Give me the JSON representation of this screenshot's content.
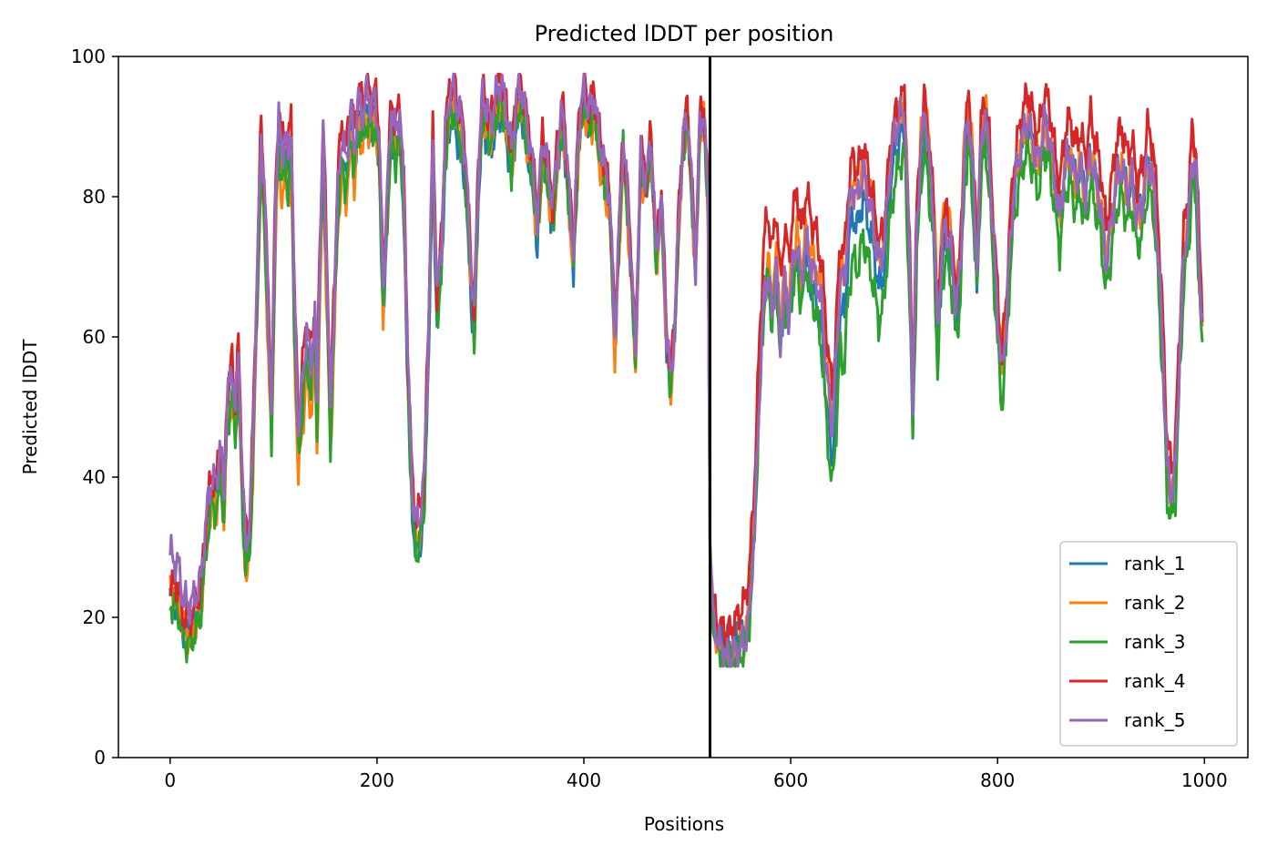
{
  "chart_data": {
    "type": "line",
    "title": "Predicted lDDT per position",
    "xlabel": "Positions",
    "ylabel": "Predicted lDDT",
    "xlim": [
      -50,
      1042
    ],
    "ylim": [
      0,
      100
    ],
    "xticks": [
      0,
      200,
      400,
      600,
      800,
      1000
    ],
    "yticks": [
      0,
      20,
      40,
      60,
      80,
      100
    ],
    "vline_x": 522,
    "legend_loc": "lower right",
    "series": [
      {
        "name": "rank_1",
        "color": "#1f77b4",
        "offset": [
          [
            0,
            -2.0
          ],
          [
            60,
            0
          ],
          [
            290,
            -4
          ],
          [
            520,
            0
          ],
          [
            540,
            1
          ],
          [
            560,
            -1
          ],
          [
            640,
            -6
          ],
          [
            700,
            -2
          ],
          [
            1000,
            -1
          ]
        ]
      },
      {
        "name": "rank_2",
        "color": "#ff7f0e",
        "offset": [
          [
            0,
            -1.0
          ],
          [
            140,
            -6
          ],
          [
            230,
            -1
          ],
          [
            420,
            -3
          ],
          [
            520,
            -1
          ],
          [
            600,
            -1
          ],
          [
            750,
            3
          ],
          [
            850,
            -2
          ],
          [
            1000,
            -1
          ]
        ]
      },
      {
        "name": "rank_3",
        "color": "#2ca02c",
        "offset": [
          [
            0,
            -3.0
          ],
          [
            80,
            -3
          ],
          [
            240,
            -3
          ],
          [
            500,
            -1
          ],
          [
            520,
            -1
          ],
          [
            620,
            -6
          ],
          [
            650,
            -12
          ],
          [
            720,
            -4
          ],
          [
            900,
            -6
          ],
          [
            1000,
            -4
          ]
        ]
      },
      {
        "name": "rank_4",
        "color": "#d62728",
        "offset": [
          [
            0,
            0
          ],
          [
            60,
            2
          ],
          [
            140,
            3
          ],
          [
            300,
            1
          ],
          [
            520,
            1
          ],
          [
            580,
            6
          ],
          [
            640,
            4
          ],
          [
            760,
            2
          ],
          [
            930,
            4
          ],
          [
            1000,
            3
          ]
        ]
      },
      {
        "name": "rank_5",
        "color": "#9467bd",
        "offset": [
          [
            0,
            4.0
          ],
          [
            40,
            1
          ],
          [
            140,
            1
          ],
          [
            520,
            0
          ],
          [
            580,
            -3
          ],
          [
            620,
            -2
          ],
          [
            700,
            1
          ],
          [
            900,
            -2
          ],
          [
            1000,
            0
          ]
        ]
      }
    ],
    "base_profile": [
      [
        0,
        25
      ],
      [
        8,
        24
      ],
      [
        12,
        20
      ],
      [
        18,
        19
      ],
      [
        25,
        21
      ],
      [
        30,
        24
      ],
      [
        35,
        33
      ],
      [
        40,
        39
      ],
      [
        45,
        38
      ],
      [
        48,
        44
      ],
      [
        52,
        37
      ],
      [
        55,
        50
      ],
      [
        60,
        55
      ],
      [
        63,
        48
      ],
      [
        66,
        57
      ],
      [
        70,
        38
      ],
      [
        73,
        30
      ],
      [
        77,
        32
      ],
      [
        80,
        45
      ],
      [
        85,
        72
      ],
      [
        88,
        89
      ],
      [
        92,
        76
      ],
      [
        95,
        62
      ],
      [
        98,
        48
      ],
      [
        102,
        80
      ],
      [
        105,
        90
      ],
      [
        108,
        85
      ],
      [
        111,
        88
      ],
      [
        114,
        84
      ],
      [
        117,
        90
      ],
      [
        120,
        65
      ],
      [
        124,
        45
      ],
      [
        128,
        53
      ],
      [
        132,
        60
      ],
      [
        136,
        55
      ],
      [
        140,
        62
      ],
      [
        142,
        50
      ],
      [
        145,
        72
      ],
      [
        148,
        88
      ],
      [
        151,
        72
      ],
      [
        155,
        48
      ],
      [
        158,
        62
      ],
      [
        162,
        80
      ],
      [
        166,
        88
      ],
      [
        170,
        84
      ],
      [
        175,
        92
      ],
      [
        178,
        86
      ],
      [
        182,
        93
      ],
      [
        186,
        91
      ],
      [
        190,
        94
      ],
      [
        194,
        92
      ],
      [
        198,
        93
      ],
      [
        202,
        88
      ],
      [
        206,
        66
      ],
      [
        210,
        80
      ],
      [
        214,
        92
      ],
      [
        218,
        88
      ],
      [
        222,
        92
      ],
      [
        226,
        80
      ],
      [
        230,
        55
      ],
      [
        234,
        38
      ],
      [
        238,
        32
      ],
      [
        242,
        34
      ],
      [
        246,
        40
      ],
      [
        250,
        62
      ],
      [
        254,
        88
      ],
      [
        258,
        65
      ],
      [
        262,
        72
      ],
      [
        266,
        88
      ],
      [
        270,
        94
      ],
      [
        274,
        95
      ],
      [
        278,
        92
      ],
      [
        282,
        90
      ],
      [
        286,
        84
      ],
      [
        290,
        72
      ],
      [
        294,
        62
      ],
      [
        298,
        84
      ],
      [
        302,
        94
      ],
      [
        306,
        92
      ],
      [
        310,
        90
      ],
      [
        315,
        94
      ],
      [
        320,
        96
      ],
      [
        325,
        92
      ],
      [
        330,
        86
      ],
      [
        335,
        94
      ],
      [
        340,
        95
      ],
      [
        345,
        90
      ],
      [
        350,
        85
      ],
      [
        355,
        76
      ],
      [
        360,
        88
      ],
      [
        365,
        84
      ],
      [
        370,
        78
      ],
      [
        375,
        88
      ],
      [
        380,
        92
      ],
      [
        385,
        82
      ],
      [
        390,
        72
      ],
      [
        395,
        90
      ],
      [
        400,
        95
      ],
      [
        405,
        92
      ],
      [
        410,
        94
      ],
      [
        415,
        88
      ],
      [
        420,
        84
      ],
      [
        425,
        80
      ],
      [
        430,
        60
      ],
      [
        434,
        75
      ],
      [
        438,
        88
      ],
      [
        442,
        80
      ],
      [
        446,
        70
      ],
      [
        450,
        58
      ],
      [
        455,
        86
      ],
      [
        460,
        82
      ],
      [
        465,
        88
      ],
      [
        470,
        72
      ],
      [
        475,
        80
      ],
      [
        480,
        60
      ],
      [
        484,
        54
      ],
      [
        488,
        62
      ],
      [
        492,
        78
      ],
      [
        496,
        88
      ],
      [
        500,
        92
      ],
      [
        504,
        82
      ],
      [
        508,
        70
      ],
      [
        512,
        90
      ],
      [
        516,
        92
      ],
      [
        520,
        80
      ],
      [
        522,
        30
      ],
      [
        525,
        20
      ],
      [
        530,
        17
      ],
      [
        535,
        16
      ],
      [
        540,
        15
      ],
      [
        545,
        16
      ],
      [
        550,
        17
      ],
      [
        555,
        18
      ],
      [
        560,
        22
      ],
      [
        565,
        35
      ],
      [
        570,
        55
      ],
      [
        574,
        68
      ],
      [
        578,
        72
      ],
      [
        582,
        66
      ],
      [
        586,
        73
      ],
      [
        590,
        62
      ],
      [
        594,
        70
      ],
      [
        598,
        66
      ],
      [
        602,
        72
      ],
      [
        606,
        76
      ],
      [
        610,
        70
      ],
      [
        615,
        76
      ],
      [
        620,
        72
      ],
      [
        625,
        70
      ],
      [
        630,
        66
      ],
      [
        635,
        56
      ],
      [
        640,
        48
      ],
      [
        644,
        58
      ],
      [
        648,
        70
      ],
      [
        652,
        68
      ],
      [
        656,
        78
      ],
      [
        660,
        82
      ],
      [
        665,
        80
      ],
      [
        670,
        84
      ],
      [
        675,
        80
      ],
      [
        680,
        76
      ],
      [
        685,
        70
      ],
      [
        690,
        72
      ],
      [
        695,
        82
      ],
      [
        700,
        88
      ],
      [
        705,
        90
      ],
      [
        710,
        92
      ],
      [
        715,
        70
      ],
      [
        718,
        50
      ],
      [
        722,
        76
      ],
      [
        726,
        86
      ],
      [
        730,
        92
      ],
      [
        734,
        84
      ],
      [
        738,
        78
      ],
      [
        742,
        60
      ],
      [
        746,
        72
      ],
      [
        750,
        76
      ],
      [
        755,
        72
      ],
      [
        760,
        64
      ],
      [
        764,
        70
      ],
      [
        768,
        86
      ],
      [
        772,
        92
      ],
      [
        776,
        84
      ],
      [
        780,
        70
      ],
      [
        784,
        88
      ],
      [
        788,
        92
      ],
      [
        792,
        86
      ],
      [
        796,
        74
      ],
      [
        800,
        64
      ],
      [
        804,
        55
      ],
      [
        808,
        62
      ],
      [
        812,
        74
      ],
      [
        816,
        82
      ],
      [
        820,
        86
      ],
      [
        825,
        90
      ],
      [
        830,
        92
      ],
      [
        835,
        88
      ],
      [
        840,
        86
      ],
      [
        845,
        92
      ],
      [
        850,
        90
      ],
      [
        855,
        84
      ],
      [
        860,
        78
      ],
      [
        865,
        86
      ],
      [
        870,
        88
      ],
      [
        875,
        84
      ],
      [
        880,
        86
      ],
      [
        885,
        82
      ],
      [
        890,
        88
      ],
      [
        895,
        84
      ],
      [
        900,
        80
      ],
      [
        905,
        72
      ],
      [
        910,
        78
      ],
      [
        915,
        84
      ],
      [
        920,
        86
      ],
      [
        925,
        82
      ],
      [
        930,
        84
      ],
      [
        935,
        78
      ],
      [
        940,
        80
      ],
      [
        945,
        86
      ],
      [
        950,
        84
      ],
      [
        955,
        74
      ],
      [
        960,
        58
      ],
      [
        964,
        42
      ],
      [
        968,
        38
      ],
      [
        972,
        42
      ],
      [
        976,
        58
      ],
      [
        980,
        72
      ],
      [
        985,
        78
      ],
      [
        988,
        86
      ],
      [
        992,
        84
      ],
      [
        995,
        70
      ],
      [
        998,
        62
      ]
    ],
    "ripple": {
      "amp": 3.5,
      "freq_a": 0.9,
      "freq_b": 2.3
    }
  }
}
